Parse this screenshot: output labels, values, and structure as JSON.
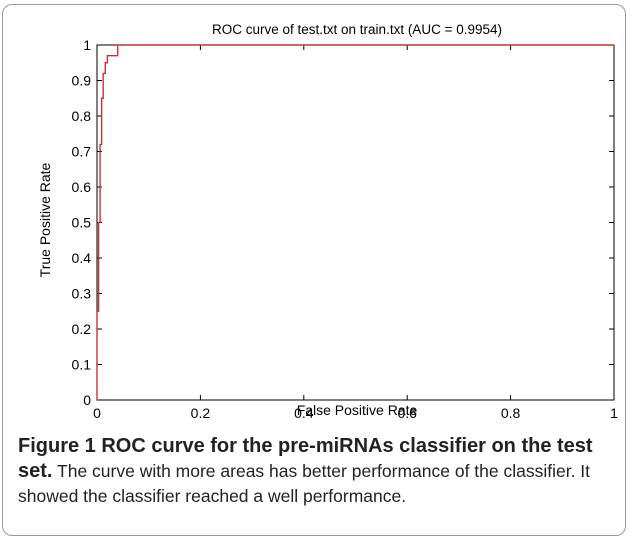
{
  "figure": {
    "caption_bold": "Figure 1 ROC curve for the pre-miRNAs classifier on the test set.",
    "caption_text": "The curve with more areas has better performance of the classifier. It showed the classifier reached a well performance."
  },
  "chart_data": {
    "type": "line",
    "title": "ROC curve of test.txt on train.txt (AUC = 0.9954)",
    "xlabel": "False Positive Rate",
    "ylabel": "True Positive Rate",
    "xlim": [
      0,
      1
    ],
    "ylim": [
      0,
      1
    ],
    "xticks": [
      "0",
      "0.2",
      "0.4",
      "0.6",
      "0.8",
      "1"
    ],
    "yticks": [
      "0",
      "0.1",
      "0.2",
      "0.3",
      "0.4",
      "0.5",
      "0.6",
      "0.7",
      "0.8",
      "0.9",
      "1"
    ],
    "grid": false,
    "series": [
      {
        "color": "#c83232",
        "x": [
          0,
          0,
          0.003,
          0.003,
          0.006,
          0.006,
          0.009,
          0.009,
          0.012,
          0.012,
          0.016,
          0.016,
          0.02,
          0.02,
          0.04,
          0.04,
          1
        ],
        "y": [
          0,
          0.25,
          0.25,
          0.5,
          0.5,
          0.72,
          0.72,
          0.85,
          0.85,
          0.92,
          0.92,
          0.95,
          0.95,
          0.97,
          0.97,
          1.0,
          1.0
        ]
      }
    ]
  }
}
